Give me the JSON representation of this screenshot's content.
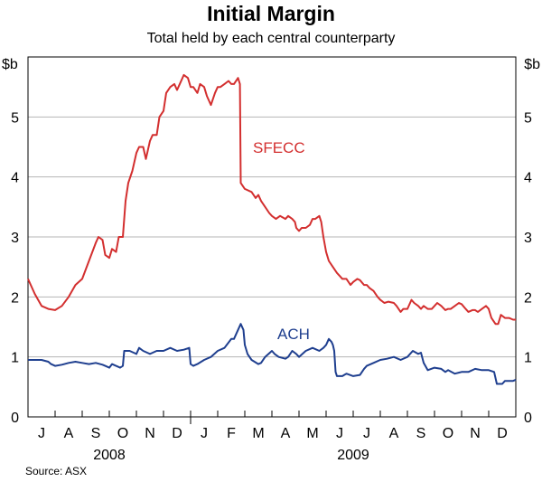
{
  "chart_data": {
    "type": "line",
    "title": "Initial Margin",
    "subtitle": "Total held by each central counterparty",
    "unit_left": "$b",
    "unit_right": "$b",
    "source": "Source: ASX",
    "ylim": [
      0,
      6
    ],
    "yticks": [
      "0",
      "1",
      "2",
      "3",
      "4",
      "5"
    ],
    "x_range": [
      0,
      18
    ],
    "month_labels": [
      "J",
      "A",
      "S",
      "O",
      "N",
      "D",
      "J",
      "F",
      "M",
      "A",
      "M",
      "J",
      "J",
      "A",
      "S",
      "O",
      "N",
      "D"
    ],
    "year_labels": [
      {
        "label": "2008",
        "pos": 3.0
      },
      {
        "label": "2009",
        "pos": 12.0
      }
    ],
    "colors": {
      "SFECC": "#d32f2f",
      "ACH": "#1f3f8f",
      "grid": "#b4b4b4"
    },
    "series": [
      {
        "name": "SFECC",
        "label": "SFECC",
        "label_pos": [
          8.3,
          4.4
        ],
        "points": [
          [
            0,
            2.3
          ],
          [
            0.25,
            2.05
          ],
          [
            0.5,
            1.85
          ],
          [
            0.75,
            1.8
          ],
          [
            1.0,
            1.78
          ],
          [
            1.25,
            1.85
          ],
          [
            1.5,
            2.0
          ],
          [
            1.75,
            2.2
          ],
          [
            2.0,
            2.3
          ],
          [
            2.25,
            2.6
          ],
          [
            2.5,
            2.9
          ],
          [
            2.6,
            3.0
          ],
          [
            2.75,
            2.95
          ],
          [
            2.85,
            2.7
          ],
          [
            3.0,
            2.65
          ],
          [
            3.1,
            2.8
          ],
          [
            3.25,
            2.75
          ],
          [
            3.35,
            3.0
          ],
          [
            3.5,
            3.0
          ],
          [
            3.6,
            3.6
          ],
          [
            3.7,
            3.9
          ],
          [
            3.85,
            4.1
          ],
          [
            4.0,
            4.4
          ],
          [
            4.1,
            4.5
          ],
          [
            4.25,
            4.5
          ],
          [
            4.35,
            4.3
          ],
          [
            4.5,
            4.6
          ],
          [
            4.6,
            4.7
          ],
          [
            4.75,
            4.7
          ],
          [
            4.85,
            5.0
          ],
          [
            5.0,
            5.1
          ],
          [
            5.1,
            5.4
          ],
          [
            5.25,
            5.5
          ],
          [
            5.4,
            5.55
          ],
          [
            5.5,
            5.45
          ],
          [
            5.6,
            5.55
          ],
          [
            5.75,
            5.7
          ],
          [
            5.9,
            5.65
          ],
          [
            6.0,
            5.5
          ],
          [
            6.1,
            5.5
          ],
          [
            6.25,
            5.4
          ],
          [
            6.35,
            5.55
          ],
          [
            6.5,
            5.5
          ],
          [
            6.6,
            5.35
          ],
          [
            6.75,
            5.2
          ],
          [
            6.9,
            5.4
          ],
          [
            7.0,
            5.5
          ],
          [
            7.1,
            5.5
          ],
          [
            7.25,
            5.55
          ],
          [
            7.4,
            5.6
          ],
          [
            7.5,
            5.55
          ],
          [
            7.6,
            5.55
          ],
          [
            7.75,
            5.65
          ],
          [
            7.82,
            5.55
          ],
          [
            7.85,
            3.9
          ],
          [
            8.0,
            3.8
          ],
          [
            8.25,
            3.75
          ],
          [
            8.4,
            3.65
          ],
          [
            8.5,
            3.7
          ],
          [
            8.6,
            3.6
          ],
          [
            8.75,
            3.5
          ],
          [
            8.9,
            3.4
          ],
          [
            9.0,
            3.35
          ],
          [
            9.15,
            3.3
          ],
          [
            9.3,
            3.35
          ],
          [
            9.5,
            3.3
          ],
          [
            9.6,
            3.35
          ],
          [
            9.75,
            3.3
          ],
          [
            9.85,
            3.25
          ],
          [
            9.9,
            3.15
          ],
          [
            10.0,
            3.1
          ],
          [
            10.1,
            3.15
          ],
          [
            10.25,
            3.15
          ],
          [
            10.4,
            3.2
          ],
          [
            10.5,
            3.3
          ],
          [
            10.6,
            3.3
          ],
          [
            10.75,
            3.35
          ],
          [
            10.82,
            3.25
          ],
          [
            10.9,
            3.0
          ],
          [
            11.0,
            2.75
          ],
          [
            11.1,
            2.6
          ],
          [
            11.25,
            2.5
          ],
          [
            11.4,
            2.4
          ],
          [
            11.5,
            2.35
          ],
          [
            11.6,
            2.3
          ],
          [
            11.75,
            2.3
          ],
          [
            11.9,
            2.2
          ],
          [
            12.0,
            2.25
          ],
          [
            12.15,
            2.3
          ],
          [
            12.25,
            2.28
          ],
          [
            12.4,
            2.2
          ],
          [
            12.5,
            2.2
          ],
          [
            12.6,
            2.15
          ],
          [
            12.75,
            2.1
          ],
          [
            12.9,
            2.0
          ],
          [
            13.0,
            1.95
          ],
          [
            13.15,
            1.9
          ],
          [
            13.3,
            1.92
          ],
          [
            13.5,
            1.9
          ],
          [
            13.6,
            1.85
          ],
          [
            13.75,
            1.75
          ],
          [
            13.85,
            1.8
          ],
          [
            14.0,
            1.8
          ],
          [
            14.15,
            1.95
          ],
          [
            14.25,
            1.9
          ],
          [
            14.4,
            1.85
          ],
          [
            14.5,
            1.8
          ],
          [
            14.6,
            1.85
          ],
          [
            14.75,
            1.8
          ],
          [
            14.9,
            1.8
          ],
          [
            15.0,
            1.85
          ],
          [
            15.1,
            1.9
          ],
          [
            15.25,
            1.85
          ],
          [
            15.4,
            1.78
          ],
          [
            15.5,
            1.8
          ],
          [
            15.6,
            1.8
          ],
          [
            15.75,
            1.85
          ],
          [
            15.9,
            1.9
          ],
          [
            16.0,
            1.88
          ],
          [
            16.15,
            1.8
          ],
          [
            16.25,
            1.75
          ],
          [
            16.4,
            1.78
          ],
          [
            16.5,
            1.78
          ],
          [
            16.6,
            1.75
          ],
          [
            16.75,
            1.8
          ],
          [
            16.9,
            1.85
          ],
          [
            17.0,
            1.8
          ],
          [
            17.1,
            1.65
          ],
          [
            17.25,
            1.55
          ],
          [
            17.35,
            1.55
          ],
          [
            17.45,
            1.7
          ],
          [
            17.6,
            1.65
          ],
          [
            17.75,
            1.65
          ],
          [
            17.9,
            1.62
          ],
          [
            18.0,
            1.62
          ]
        ]
      },
      {
        "name": "ACH",
        "label": "ACH",
        "label_pos": [
          9.2,
          1.3
        ],
        "points": [
          [
            0,
            0.95
          ],
          [
            0.5,
            0.95
          ],
          [
            0.75,
            0.92
          ],
          [
            0.85,
            0.88
          ],
          [
            1.0,
            0.85
          ],
          [
            1.25,
            0.87
          ],
          [
            1.5,
            0.9
          ],
          [
            1.75,
            0.92
          ],
          [
            2.0,
            0.9
          ],
          [
            2.25,
            0.88
          ],
          [
            2.5,
            0.9
          ],
          [
            2.75,
            0.87
          ],
          [
            2.85,
            0.85
          ],
          [
            3.0,
            0.82
          ],
          [
            3.1,
            0.88
          ],
          [
            3.25,
            0.85
          ],
          [
            3.4,
            0.82
          ],
          [
            3.5,
            0.85
          ],
          [
            3.55,
            1.1
          ],
          [
            3.75,
            1.1
          ],
          [
            4.0,
            1.05
          ],
          [
            4.1,
            1.15
          ],
          [
            4.25,
            1.1
          ],
          [
            4.5,
            1.05
          ],
          [
            4.75,
            1.1
          ],
          [
            5.0,
            1.1
          ],
          [
            5.25,
            1.15
          ],
          [
            5.5,
            1.1
          ],
          [
            5.75,
            1.12
          ],
          [
            5.95,
            1.15
          ],
          [
            6.0,
            0.88
          ],
          [
            6.1,
            0.85
          ],
          [
            6.25,
            0.88
          ],
          [
            6.5,
            0.95
          ],
          [
            6.75,
            1.0
          ],
          [
            7.0,
            1.1
          ],
          [
            7.25,
            1.15
          ],
          [
            7.5,
            1.3
          ],
          [
            7.6,
            1.3
          ],
          [
            7.75,
            1.45
          ],
          [
            7.85,
            1.55
          ],
          [
            7.95,
            1.45
          ],
          [
            8.0,
            1.2
          ],
          [
            8.1,
            1.05
          ],
          [
            8.25,
            0.95
          ],
          [
            8.5,
            0.88
          ],
          [
            8.6,
            0.9
          ],
          [
            8.75,
            1.0
          ],
          [
            9.0,
            1.1
          ],
          [
            9.1,
            1.05
          ],
          [
            9.25,
            1.0
          ],
          [
            9.5,
            0.97
          ],
          [
            9.6,
            1.0
          ],
          [
            9.75,
            1.1
          ],
          [
            9.9,
            1.05
          ],
          [
            10.0,
            1.0
          ],
          [
            10.25,
            1.1
          ],
          [
            10.5,
            1.15
          ],
          [
            10.75,
            1.1
          ],
          [
            10.9,
            1.15
          ],
          [
            11.0,
            1.2
          ],
          [
            11.1,
            1.3
          ],
          [
            11.2,
            1.25
          ],
          [
            11.25,
            1.2
          ],
          [
            11.3,
            1.1
          ],
          [
            11.35,
            0.75
          ],
          [
            11.4,
            0.68
          ],
          [
            11.6,
            0.68
          ],
          [
            11.75,
            0.72
          ],
          [
            12.0,
            0.68
          ],
          [
            12.25,
            0.7
          ],
          [
            12.4,
            0.8
          ],
          [
            12.5,
            0.85
          ],
          [
            12.75,
            0.9
          ],
          [
            13.0,
            0.95
          ],
          [
            13.25,
            0.97
          ],
          [
            13.5,
            1.0
          ],
          [
            13.75,
            0.95
          ],
          [
            14.0,
            1.0
          ],
          [
            14.2,
            1.1
          ],
          [
            14.4,
            1.05
          ],
          [
            14.5,
            1.07
          ],
          [
            14.6,
            0.9
          ],
          [
            14.75,
            0.78
          ],
          [
            15.0,
            0.82
          ],
          [
            15.25,
            0.8
          ],
          [
            15.4,
            0.75
          ],
          [
            15.5,
            0.78
          ],
          [
            15.75,
            0.72
          ],
          [
            16.0,
            0.75
          ],
          [
            16.25,
            0.75
          ],
          [
            16.5,
            0.8
          ],
          [
            16.75,
            0.78
          ],
          [
            17.0,
            0.78
          ],
          [
            17.2,
            0.75
          ],
          [
            17.3,
            0.55
          ],
          [
            17.5,
            0.55
          ],
          [
            17.6,
            0.6
          ],
          [
            17.75,
            0.6
          ],
          [
            17.9,
            0.6
          ],
          [
            18.0,
            0.62
          ]
        ]
      }
    ]
  }
}
